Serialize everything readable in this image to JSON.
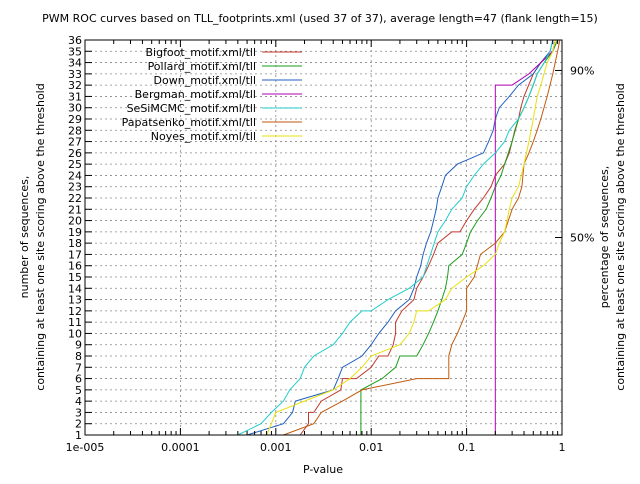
{
  "chart_data": {
    "type": "line",
    "title": "PWM ROC curves based on TLL_footprints.xml (used 37 of 37), average length=47 (flank length=15)",
    "xlabel": "P-value",
    "ylabel_line1": "number of sequences,",
    "ylabel_line2": "containing at least one site scoring above the threshold",
    "y2label_line1": "percentage of sequences,",
    "y2label_line2": "containing at least one site scoring above the threshold",
    "xscale": "log",
    "xlim": [
      1e-05,
      1
    ],
    "ylim": [
      1,
      36
    ],
    "x_ticks": [
      1e-05,
      0.0001,
      0.001,
      0.01,
      0.1,
      1
    ],
    "x_tick_labels": [
      "1e-005",
      "0.0001",
      "0.001",
      "0.01",
      "0.1",
      "1"
    ],
    "y_ticks": [
      1,
      2,
      3,
      4,
      5,
      6,
      7,
      8,
      9,
      10,
      11,
      12,
      13,
      14,
      15,
      16,
      17,
      18,
      19,
      20,
      21,
      22,
      23,
      24,
      25,
      26,
      27,
      28,
      29,
      30,
      31,
      32,
      33,
      34,
      35,
      36
    ],
    "y2_ticks": [
      {
        "value": 18.5,
        "label": "50%"
      },
      {
        "value": 33.3,
        "label": "90%"
      }
    ],
    "grid": true,
    "legend_position": "top-left",
    "series": [
      {
        "name": "Bigfoot_motif.xml/tll",
        "color": "#c0392b",
        "points": [
          [
            0.0018,
            1
          ],
          [
            0.0022,
            2
          ],
          [
            0.0022,
            3
          ],
          [
            0.0025,
            3
          ],
          [
            0.003,
            4
          ],
          [
            0.0048,
            5
          ],
          [
            0.005,
            6
          ],
          [
            0.007,
            6
          ],
          [
            0.01,
            7
          ],
          [
            0.012,
            8
          ],
          [
            0.015,
            8
          ],
          [
            0.017,
            9
          ],
          [
            0.018,
            10
          ],
          [
            0.018,
            11
          ],
          [
            0.021,
            12
          ],
          [
            0.028,
            13
          ],
          [
            0.03,
            14
          ],
          [
            0.035,
            15
          ],
          [
            0.04,
            16
          ],
          [
            0.045,
            17
          ],
          [
            0.05,
            18
          ],
          [
            0.07,
            19
          ],
          [
            0.085,
            19
          ],
          [
            0.1,
            20
          ],
          [
            0.12,
            21
          ],
          [
            0.15,
            22
          ],
          [
            0.18,
            23
          ],
          [
            0.2,
            24
          ],
          [
            0.25,
            25
          ],
          [
            0.28,
            26
          ],
          [
            0.3,
            27
          ],
          [
            0.32,
            28
          ],
          [
            0.35,
            29
          ],
          [
            0.37,
            30
          ],
          [
            0.4,
            31
          ],
          [
            0.5,
            33
          ],
          [
            0.6,
            34
          ],
          [
            0.8,
            35
          ],
          [
            0.85,
            36
          ]
        ]
      },
      {
        "name": "Pollard_motif.xml/tll",
        "color": "#1a9e1a",
        "points": [
          [
            0.0078,
            1
          ],
          [
            0.0078,
            5
          ],
          [
            0.013,
            6
          ],
          [
            0.018,
            7
          ],
          [
            0.02,
            8
          ],
          [
            0.03,
            8
          ],
          [
            0.035,
            9
          ],
          [
            0.04,
            10
          ],
          [
            0.045,
            11
          ],
          [
            0.05,
            12
          ],
          [
            0.055,
            13
          ],
          [
            0.06,
            14
          ],
          [
            0.063,
            15
          ],
          [
            0.065,
            16
          ],
          [
            0.09,
            17
          ],
          [
            0.1,
            18
          ],
          [
            0.11,
            19
          ],
          [
            0.13,
            20
          ],
          [
            0.16,
            21
          ],
          [
            0.18,
            22
          ],
          [
            0.2,
            23
          ],
          [
            0.23,
            24
          ],
          [
            0.25,
            25
          ],
          [
            0.3,
            27
          ],
          [
            0.35,
            29
          ],
          [
            0.4,
            30
          ],
          [
            0.45,
            31
          ],
          [
            0.5,
            32
          ],
          [
            0.55,
            33
          ],
          [
            0.65,
            34
          ],
          [
            0.8,
            35
          ],
          [
            0.9,
            36
          ]
        ]
      },
      {
        "name": "Down_motif.xml/tll",
        "color": "#1f5fbf",
        "points": [
          [
            0.0005,
            1
          ],
          [
            0.0012,
            2
          ],
          [
            0.0015,
            3
          ],
          [
            0.0016,
            4
          ],
          [
            0.004,
            5
          ],
          [
            0.0045,
            6
          ],
          [
            0.005,
            7
          ],
          [
            0.008,
            8
          ],
          [
            0.01,
            9
          ],
          [
            0.012,
            10
          ],
          [
            0.015,
            11
          ],
          [
            0.018,
            12
          ],
          [
            0.025,
            13
          ],
          [
            0.028,
            14
          ],
          [
            0.03,
            15
          ],
          [
            0.033,
            16
          ],
          [
            0.035,
            17
          ],
          [
            0.038,
            18
          ],
          [
            0.042,
            19
          ],
          [
            0.045,
            20
          ],
          [
            0.048,
            21
          ],
          [
            0.05,
            22
          ],
          [
            0.055,
            23
          ],
          [
            0.06,
            24
          ],
          [
            0.08,
            25
          ],
          [
            0.15,
            26
          ],
          [
            0.17,
            27
          ],
          [
            0.19,
            28
          ],
          [
            0.2,
            29
          ],
          [
            0.22,
            30
          ],
          [
            0.28,
            31
          ],
          [
            0.35,
            32
          ],
          [
            0.5,
            33
          ],
          [
            0.6,
            34
          ],
          [
            0.75,
            35
          ],
          [
            0.8,
            36
          ]
        ]
      },
      {
        "name": "Bergman_motif.xml/tll",
        "color": "#b000b0",
        "points": [
          [
            0.2,
            1
          ],
          [
            0.2,
            32
          ],
          [
            0.3,
            32
          ],
          [
            0.45,
            33
          ],
          [
            0.6,
            34
          ],
          [
            0.8,
            35
          ],
          [
            0.85,
            36
          ]
        ]
      },
      {
        "name": "SeSiMCMC_motif.xml/tll",
        "color": "#22cccc",
        "points": [
          [
            0.0004,
            1
          ],
          [
            0.0007,
            2
          ],
          [
            0.0009,
            3
          ],
          [
            0.0012,
            4
          ],
          [
            0.0014,
            5
          ],
          [
            0.0018,
            6
          ],
          [
            0.002,
            7
          ],
          [
            0.0025,
            8
          ],
          [
            0.004,
            9
          ],
          [
            0.005,
            10
          ],
          [
            0.006,
            11
          ],
          [
            0.008,
            12
          ],
          [
            0.01,
            12
          ],
          [
            0.015,
            13
          ],
          [
            0.025,
            14
          ],
          [
            0.035,
            15
          ],
          [
            0.05,
            19
          ],
          [
            0.06,
            20
          ],
          [
            0.07,
            21
          ],
          [
            0.09,
            22
          ],
          [
            0.1,
            23
          ],
          [
            0.12,
            24
          ],
          [
            0.15,
            25
          ],
          [
            0.2,
            26
          ],
          [
            0.25,
            27
          ],
          [
            0.28,
            28
          ],
          [
            0.35,
            29
          ],
          [
            0.4,
            30
          ],
          [
            0.45,
            31
          ],
          [
            0.55,
            33
          ],
          [
            0.65,
            34
          ],
          [
            0.75,
            35
          ],
          [
            0.8,
            36
          ]
        ]
      },
      {
        "name": "Papatsenko_motif.xml/tll",
        "color": "#c05a10",
        "points": [
          [
            0.0012,
            1
          ],
          [
            0.0025,
            2
          ],
          [
            0.003,
            3
          ],
          [
            0.005,
            4
          ],
          [
            0.008,
            5
          ],
          [
            0.03,
            6
          ],
          [
            0.065,
            6
          ],
          [
            0.065,
            7
          ],
          [
            0.065,
            8
          ],
          [
            0.07,
            9
          ],
          [
            0.08,
            10
          ],
          [
            0.09,
            11
          ],
          [
            0.1,
            12
          ],
          [
            0.1,
            14
          ],
          [
            0.12,
            15
          ],
          [
            0.14,
            17
          ],
          [
            0.2,
            18
          ],
          [
            0.25,
            19
          ],
          [
            0.3,
            21
          ],
          [
            0.35,
            22
          ],
          [
            0.38,
            23
          ],
          [
            0.4,
            25
          ],
          [
            0.45,
            26
          ],
          [
            0.5,
            27
          ],
          [
            0.55,
            28
          ],
          [
            0.6,
            29
          ],
          [
            0.7,
            31
          ],
          [
            0.8,
            33
          ],
          [
            0.9,
            35
          ],
          [
            0.95,
            36
          ]
        ]
      },
      {
        "name": "Noyes_motif.xml/tll",
        "color": "#e8e010",
        "points": [
          [
            0.0008,
            1
          ],
          [
            0.0009,
            2
          ],
          [
            0.001,
            3
          ],
          [
            0.002,
            4
          ],
          [
            0.004,
            5
          ],
          [
            0.006,
            6
          ],
          [
            0.008,
            7
          ],
          [
            0.01,
            8
          ],
          [
            0.02,
            9
          ],
          [
            0.025,
            10
          ],
          [
            0.028,
            11
          ],
          [
            0.03,
            12
          ],
          [
            0.04,
            12
          ],
          [
            0.06,
            13
          ],
          [
            0.07,
            14
          ],
          [
            0.1,
            15
          ],
          [
            0.15,
            16
          ],
          [
            0.2,
            17
          ],
          [
            0.22,
            18
          ],
          [
            0.25,
            19
          ],
          [
            0.28,
            21
          ],
          [
            0.3,
            22
          ],
          [
            0.35,
            23
          ],
          [
            0.4,
            25
          ],
          [
            0.45,
            27
          ],
          [
            0.5,
            29
          ],
          [
            0.55,
            31
          ],
          [
            0.6,
            32
          ],
          [
            0.7,
            34
          ],
          [
            0.8,
            35
          ],
          [
            0.85,
            36
          ]
        ]
      }
    ]
  }
}
